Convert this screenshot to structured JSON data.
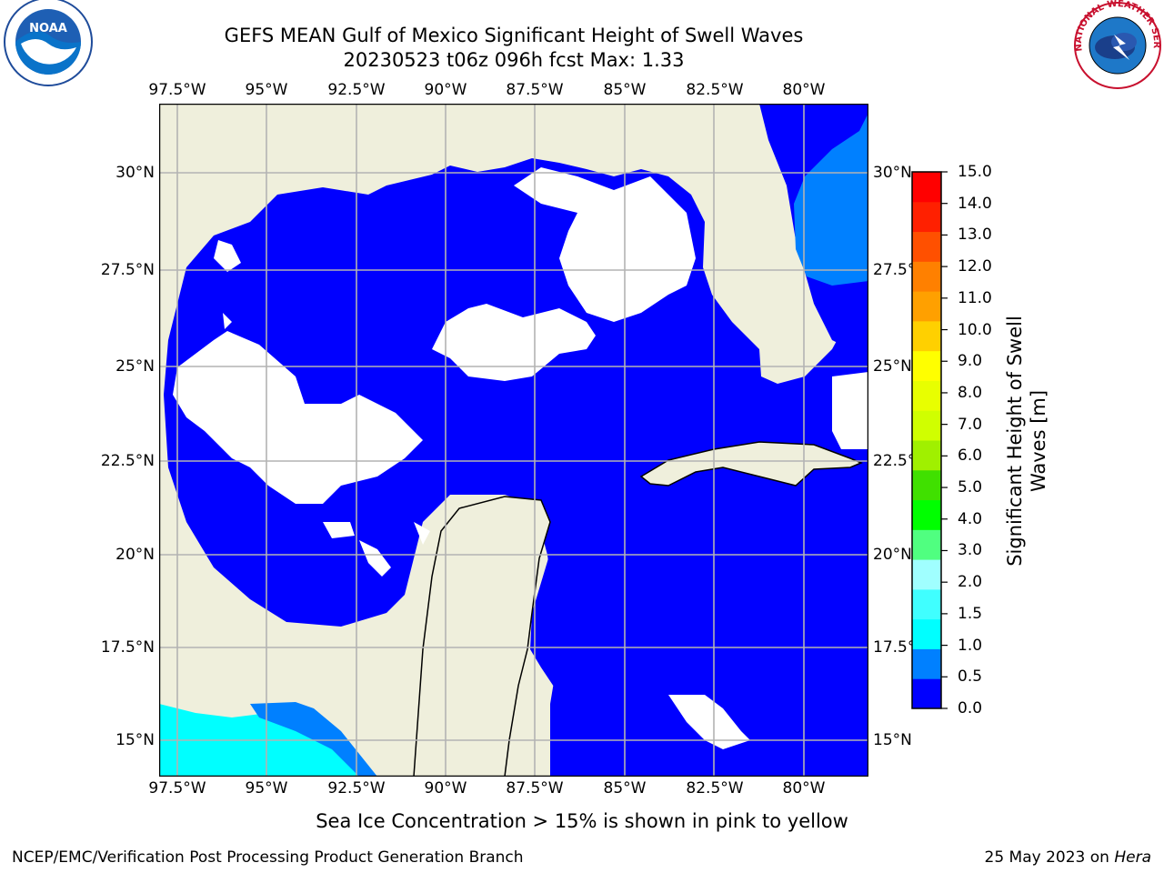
{
  "title_line1": "GEFS MEAN Gulf of Mexico Significant Height of Swell Waves",
  "title_line2": "20230523 t06z 096h fcst   Max: 1.33",
  "lon_labels": [
    "97.5°W",
    "95°W",
    "92.5°W",
    "90°W",
    "87.5°W",
    "85°W",
    "82.5°W",
    "80°W"
  ],
  "lat_labels": [
    "30°N",
    "27.5°N",
    "25°N",
    "22.5°N",
    "20°N",
    "17.5°N",
    "15°N"
  ],
  "colorbar": {
    "label_line1": "Significant Height of Swell",
    "label_line2": "Waves [m]",
    "ticks": [
      "0.0",
      "0.5",
      "1.0",
      "1.5",
      "2.0",
      "3.0",
      "4.0",
      "5.0",
      "6.0",
      "7.0",
      "8.0",
      "9.0",
      "10.0",
      "11.0",
      "12.0",
      "13.0",
      "14.0",
      "15.0"
    ],
    "colors": [
      "#0000ff",
      "#0080ff",
      "#00ffff",
      "#40ffff",
      "#a0ffff",
      "#50ff80",
      "#00ff00",
      "#40e000",
      "#a0f000",
      "#d0ff00",
      "#e8ff00",
      "#ffff00",
      "#ffd000",
      "#ffa000",
      "#ff8000",
      "#ff5000",
      "#ff2000",
      "#ff0000"
    ]
  },
  "map_colors": {
    "land": "#efefdc",
    "ocean_low": "#0000ff",
    "ocean_mid": "#0080ff",
    "ocean_high": "#00ffff",
    "nodata": "#ffffff",
    "grid": "#b3b3b3"
  },
  "footer_note": "Sea Ice Concentration > 15% is shown in pink to yellow",
  "credit_left": "NCEP/EMC/Verification Post Processing Product Generation Branch",
  "credit_right_prefix": "25 May 2023 on ",
  "credit_right_host": "Hera",
  "logos": {
    "left": "NOAA",
    "right": "NATIONAL WEATHER SERVICE"
  }
}
